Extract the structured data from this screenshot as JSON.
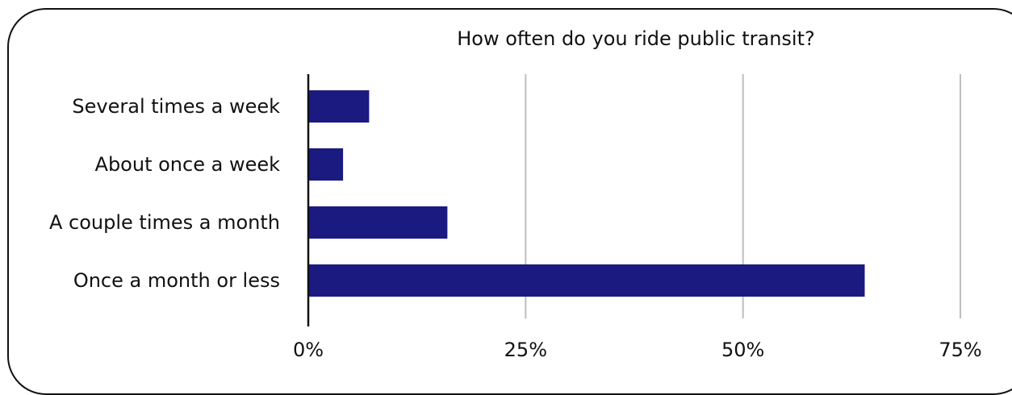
{
  "chart_data": {
    "type": "bar",
    "orientation": "horizontal",
    "title": "How often do you ride public transit?",
    "xlabel": "",
    "ylabel": "",
    "categories": [
      "Several times a week",
      "About once a week",
      "A couple times a month",
      "Once a month or less"
    ],
    "values": [
      7,
      4,
      16,
      64
    ],
    "value_unit": "%",
    "xlim": [
      0,
      75
    ],
    "xticks": [
      0,
      25,
      50,
      75
    ],
    "xtick_labels": [
      "0%",
      "25%",
      "50%",
      "75%"
    ],
    "grid": "vertical",
    "legend": "none",
    "colors": {
      "bar": "#1a1a80",
      "grid": "#bdbdbd",
      "axis": "#111111",
      "text": "#111111"
    }
  }
}
